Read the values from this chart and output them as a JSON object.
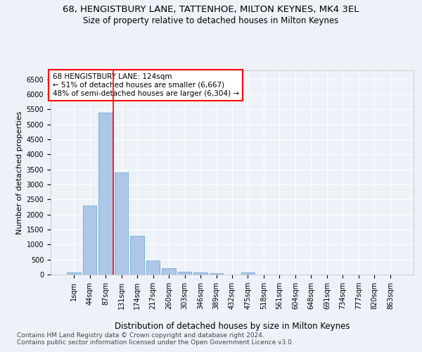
{
  "title": "68, HENGISTBURY LANE, TATTENHOE, MILTON KEYNES, MK4 3EL",
  "subtitle": "Size of property relative to detached houses in Milton Keynes",
  "xlabel": "Distribution of detached houses by size in Milton Keynes",
  "ylabel": "Number of detached properties",
  "footer1": "Contains HM Land Registry data © Crown copyright and database right 2024.",
  "footer2": "Contains public sector information licensed under the Open Government Licence v3.0.",
  "annotation_line1": "68 HENGISTBURY LANE: 124sqm",
  "annotation_line2": "← 51% of detached houses are smaller (6,667)",
  "annotation_line3": "48% of semi-detached houses are larger (6,304) →",
  "bar_labels": [
    "1sqm",
    "44sqm",
    "87sqm",
    "131sqm",
    "174sqm",
    "217sqm",
    "260sqm",
    "303sqm",
    "346sqm",
    "389sqm",
    "432sqm",
    "475sqm",
    "518sqm",
    "561sqm",
    "604sqm",
    "648sqm",
    "691sqm",
    "734sqm",
    "777sqm",
    "820sqm",
    "863sqm"
  ],
  "bar_values": [
    75,
    2300,
    5400,
    3400,
    1300,
    480,
    210,
    100,
    75,
    40,
    5,
    75,
    0,
    0,
    0,
    0,
    0,
    0,
    0,
    0,
    0
  ],
  "bar_color": "#aec6e8",
  "bar_edge_color": "#5a9fd4",
  "redline_index": 2.5,
  "ylim": [
    0,
    6800
  ],
  "yticks": [
    0,
    500,
    1000,
    1500,
    2000,
    2500,
    3000,
    3500,
    4000,
    4500,
    5000,
    5500,
    6000,
    6500
  ],
  "bg_color": "#eef2f8",
  "grid_color": "white",
  "title_fontsize": 9.5,
  "subtitle_fontsize": 8.5,
  "xlabel_fontsize": 8.5,
  "ylabel_fontsize": 8,
  "tick_fontsize": 7,
  "annotation_fontsize": 7.5,
  "footer_fontsize": 6.5
}
